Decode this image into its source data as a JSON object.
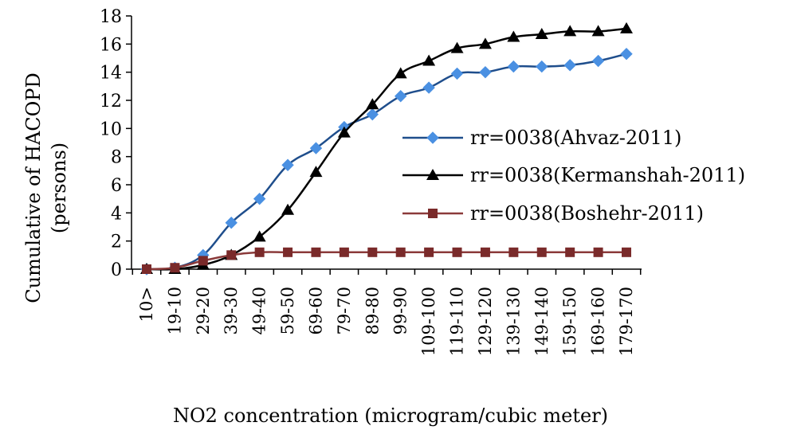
{
  "chart_data": {
    "type": "line",
    "title": "",
    "xlabel": "NO2 concentration (microgram/cubic meter)",
    "ylabel_lines": [
      "Cumulative of HACOPD",
      "(persons)"
    ],
    "categories": [
      "10>",
      "19-10",
      "29-20",
      "39-30",
      "49-40",
      "59-50",
      "69-60",
      "79-70",
      "89-80",
      "99-90",
      "109-100",
      "119-110",
      "129-120",
      "139-130",
      "149-140",
      "159-150",
      "169-160",
      "179-170"
    ],
    "ylim": [
      0,
      18
    ],
    "yticks": [
      0,
      2,
      4,
      6,
      8,
      10,
      12,
      14,
      16,
      18
    ],
    "grid": false,
    "legend_position": "right",
    "series": [
      {
        "name": "rr=0038(Ahvaz-2011)",
        "marker": "diamond",
        "line_color": "#1f4e8c",
        "marker_color": "#4a90e2",
        "values": [
          0,
          0.1,
          1.0,
          3.3,
          5.0,
          7.4,
          8.6,
          10.1,
          11.0,
          12.3,
          12.9,
          13.9,
          14.0,
          14.4,
          14.4,
          14.5,
          14.8,
          15.3
        ]
      },
      {
        "name": "rr=0038(Kermanshah-2011)",
        "marker": "triangle",
        "line_color": "#000000",
        "marker_color": "#000000",
        "values": [
          0,
          0,
          0.3,
          1.0,
          2.3,
          4.2,
          6.9,
          9.7,
          11.7,
          13.9,
          14.8,
          15.7,
          16.0,
          16.5,
          16.7,
          16.9,
          16.9,
          17.1
        ]
      },
      {
        "name": "rr=0038(Boshehr-2011)",
        "marker": "square",
        "line_color": "#8b3a3a",
        "marker_color": "#7a2a2a",
        "values": [
          0,
          0.1,
          0.6,
          1.0,
          1.2,
          1.2,
          1.2,
          1.2,
          1.2,
          1.2,
          1.2,
          1.2,
          1.2,
          1.2,
          1.2,
          1.2,
          1.2,
          1.2
        ]
      }
    ]
  }
}
